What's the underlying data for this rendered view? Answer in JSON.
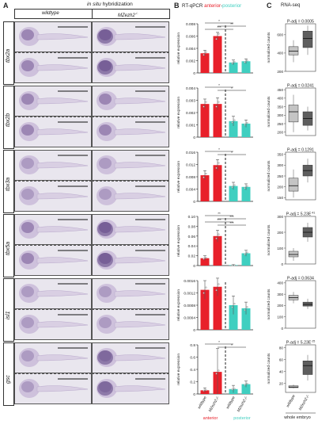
{
  "panels": {
    "a": {
      "letter": "A",
      "subtitle_italic": "in situ",
      "subtitle_rest": " hybridization",
      "col_wildtype": "wildtype",
      "col_mutant": "MZezh2",
      "col_mutant_sup": "-/-"
    },
    "b": {
      "letter": "B",
      "title_prefix": "RT-qPCR ",
      "title_anterior": "anterior",
      "title_sep": "-",
      "title_posterior": "posterior"
    },
    "c": {
      "letter": "C",
      "title": "RNA-seq"
    }
  },
  "genes": [
    "tbx2a",
    "tbx2b",
    "tbx3a",
    "tbx5a",
    "isl1",
    "gsc"
  ],
  "embryo_annotations": {
    "tbx2a_wt_top": [
      "h",
      "ov",
      "ba"
    ],
    "tbx2a_wt_bot": [
      "h",
      "ba"
    ],
    "tbx2b_wt_top": [
      "ba",
      "ov",
      "pn",
      "dnm"
    ],
    "tbx2b_wt_bot": [
      "ba",
      "ov",
      "dnm"
    ],
    "tbx5a_wt_top": [
      "h",
      "pf"
    ],
    "isl1_wt_top": [
      "ov",
      "mod",
      "ba",
      "pa"
    ],
    "isl1_wt_bot": [
      "ba",
      "mnm",
      "pf"
    ]
  },
  "rtqpcr": {
    "ylabel": "relative expression",
    "xlabels": [
      "wildtype",
      "MZezh2-/-",
      "wildtype",
      "MZezh2-/-"
    ],
    "group_labels": [
      "anterior",
      "posterior"
    ],
    "colors": {
      "anterior": "#e8202a",
      "posterior": "#3fcfc0"
    }
  },
  "chart_data": [
    {
      "type": "bar",
      "gene": "tbx2a",
      "ylim": [
        0,
        0.008
      ],
      "ticks": [
        "0",
        "0.002",
        "0.004",
        "0.006",
        "0.008"
      ],
      "categories": [
        "wildtype anterior",
        "MZezh2-/- anterior",
        "wildtype posterior",
        "MZezh2-/- posterior"
      ],
      "values": [
        0.0032,
        0.006,
        0.0017,
        0.0019
      ],
      "errors": [
        0.0005,
        0.0006,
        0.0004,
        0.0004
      ],
      "significance": [
        "*",
        "**",
        "***"
      ]
    },
    {
      "type": "bar",
      "gene": "tbx2b",
      "ylim": [
        0,
        0.004
      ],
      "ticks": [
        "0",
        "0.001",
        "0.002",
        "0.003",
        "0.004"
      ],
      "categories": [
        "wildtype anterior",
        "MZezh2-/- anterior",
        "wildtype posterior",
        "MZezh2-/- posterior"
      ],
      "values": [
        0.0027,
        0.0027,
        0.0013,
        0.0011
      ],
      "errors": [
        0.0004,
        0.0005,
        0.0004,
        0.0003
      ],
      "significance": [
        "*",
        "*"
      ]
    },
    {
      "type": "bar",
      "gene": "tbx3a",
      "ylim": [
        0,
        0.016
      ],
      "ticks": [
        "0",
        "0.004",
        "0.008",
        "0.012",
        "0.016"
      ],
      "categories": [
        "wildtype anterior",
        "MZezh2-/- anterior",
        "wildtype posterior",
        "MZezh2-/- posterior"
      ],
      "values": [
        0.0085,
        0.0118,
        0.005,
        0.0047
      ],
      "errors": [
        0.0015,
        0.0018,
        0.0012,
        0.001
      ],
      "significance": [
        "*",
        "*"
      ]
    },
    {
      "type": "bar",
      "gene": "tbx5a",
      "ylim": [
        0,
        0.1
      ],
      "ticks": [
        "0",
        "0.02",
        "0.04",
        "0.06",
        "0.08",
        "0.10"
      ],
      "categories": [
        "wildtype anterior",
        "MZezh2-/- anterior",
        "wildtype posterior",
        "MZezh2-/- posterior"
      ],
      "values": [
        0.015,
        0.06,
        0.001,
        0.025
      ],
      "errors": [
        0.005,
        0.012,
        0.001,
        0.006
      ],
      "significance": [
        "**",
        "***",
        "***",
        "***"
      ]
    },
    {
      "type": "bar",
      "gene": "isl1",
      "ylim": [
        0,
        0.0016
      ],
      "ticks": [
        "0",
        "0.0004",
        "0.0008",
        "0.0012",
        "0.0016"
      ],
      "categories": [
        "wildtype anterior",
        "MZezh2-/- anterior",
        "wildtype posterior",
        "MZezh2-/- posterior"
      ],
      "values": [
        0.0013,
        0.0014,
        0.0008,
        0.0007
      ],
      "errors": [
        0.0003,
        0.0003,
        0.0003,
        0.0002
      ],
      "significance": []
    },
    {
      "type": "bar",
      "gene": "gsc",
      "ylim": [
        0,
        0.8
      ],
      "ticks": [
        "0",
        "0.2",
        "0.4",
        "0.6",
        "0.8"
      ],
      "categories": [
        "wildtype anterior",
        "MZezh2-/- anterior",
        "wildtype posterior",
        "MZezh2-/- posterior"
      ],
      "values": [
        0.06,
        0.36,
        0.08,
        0.16
      ],
      "errors": [
        0.04,
        0.38,
        0.06,
        0.05
      ],
      "significance": [
        "*",
        "*"
      ]
    }
  ],
  "rnaseq": {
    "ylabel": "normalized counts",
    "xlabels": [
      "wildtype",
      "MZezh2-/-"
    ],
    "footer": "whole embryo",
    "padj": [
      "P-adj = 0.0005",
      "P-adj = 0.0241",
      "P-adj = 0.1291",
      "P-adj = 5.23E",
      "P-adj = 0.0634",
      "P-adj = 5.23E"
    ],
    "padj_sup": [
      "",
      "",
      "",
      "-41",
      "",
      "-25"
    ],
    "yticks": [
      [
        "200",
        "400",
        "600"
      ],
      [
        "200",
        "250",
        "300",
        "350",
        "400",
        "450"
      ],
      [
        "150",
        "200",
        "250",
        "300",
        "350"
      ],
      [
        "0",
        "100",
        "200",
        "300"
      ],
      [
        "0",
        "100",
        "200",
        "300",
        "400"
      ],
      [
        "20",
        "40",
        "60",
        "80"
      ]
    ],
    "boxes": [
      {
        "wt": [
          300,
          380,
          420,
          470,
          540
        ],
        "mz": [
          380,
          460,
          560,
          640,
          700
        ]
      },
      {
        "wt": [
          200,
          260,
          320,
          360,
          420
        ],
        "mz": [
          210,
          240,
          280,
          320,
          350
        ]
      },
      {
        "wt": [
          150,
          180,
          205,
          240,
          280
        ],
        "mz": [
          220,
          250,
          275,
          300,
          330
        ]
      },
      {
        "wt": [
          20,
          45,
          60,
          80,
          100
        ],
        "mz": [
          140,
          170,
          200,
          230,
          260
        ]
      },
      {
        "wt": [
          220,
          250,
          270,
          290,
          320
        ],
        "mz": [
          170,
          195,
          210,
          230,
          260
        ]
      },
      {
        "wt": [
          12,
          13,
          14,
          16,
          18
        ],
        "mz": [
          25,
          35,
          50,
          58,
          68
        ]
      }
    ],
    "ylims": [
      [
        200,
        720
      ],
      [
        180,
        460
      ],
      [
        140,
        360
      ],
      [
        0,
        300
      ],
      [
        0,
        420
      ],
      [
        5,
        85
      ]
    ]
  }
}
